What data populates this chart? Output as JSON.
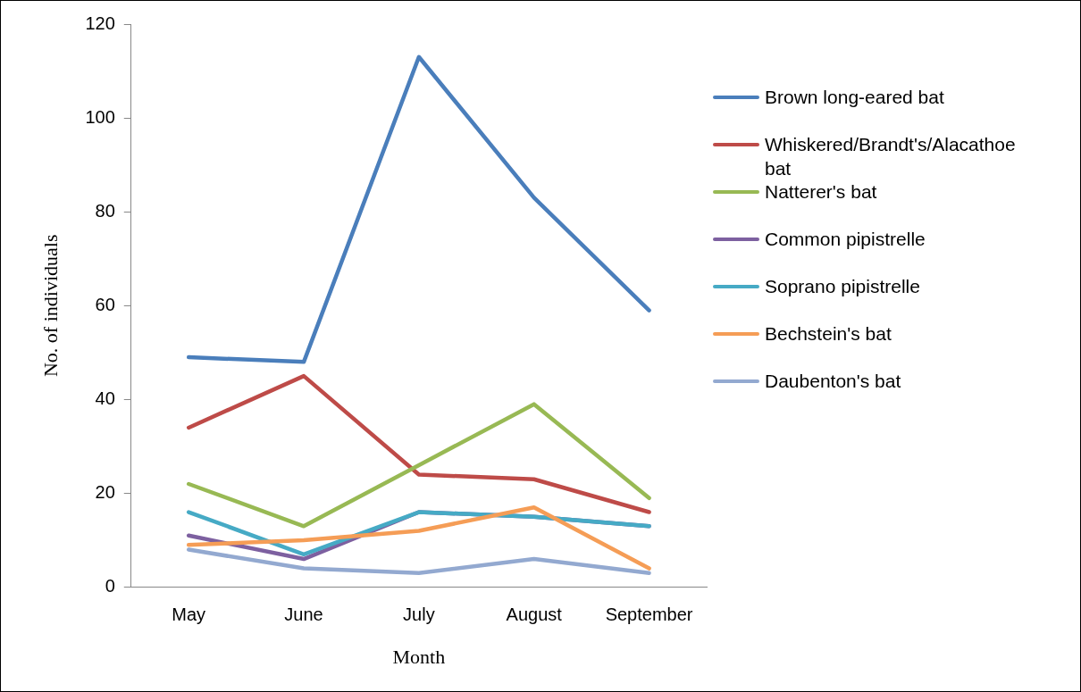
{
  "chart_data": {
    "type": "line",
    "xlabel": "Month",
    "ylabel": "No. of individuals",
    "categories": [
      "May",
      "June",
      "July",
      "August",
      "September"
    ],
    "ylim": [
      0,
      120
    ],
    "yticks": [
      0,
      20,
      40,
      60,
      80,
      100,
      120
    ],
    "grid": false,
    "legend": "right",
    "marker": "none",
    "line_style": "solid",
    "series": [
      {
        "name": "Brown long-eared bat",
        "color": "#4a7ebb",
        "values": [
          49,
          48,
          113,
          83,
          59
        ]
      },
      {
        "name": "Whiskered/Brandt's/Alacathoe bat",
        "color": "#be4b48",
        "values": [
          34,
          45,
          24,
          23,
          16
        ]
      },
      {
        "name": "Natterer's bat",
        "color": "#98b954",
        "values": [
          22,
          13,
          26,
          39,
          19
        ]
      },
      {
        "name": "Common pipistrelle",
        "color": "#7d60a0",
        "values": [
          11,
          6,
          16,
          15,
          13
        ]
      },
      {
        "name": "Soprano pipistrelle",
        "color": "#46aac5",
        "values": [
          16,
          7,
          16,
          15,
          13
        ]
      },
      {
        "name": "Bechstein's bat",
        "color": "#f59d56",
        "values": [
          9,
          10,
          12,
          17,
          4
        ]
      },
      {
        "name": "Daubenton's bat",
        "color": "#93a9d0",
        "values": [
          8,
          4,
          3,
          6,
          3
        ]
      }
    ]
  }
}
